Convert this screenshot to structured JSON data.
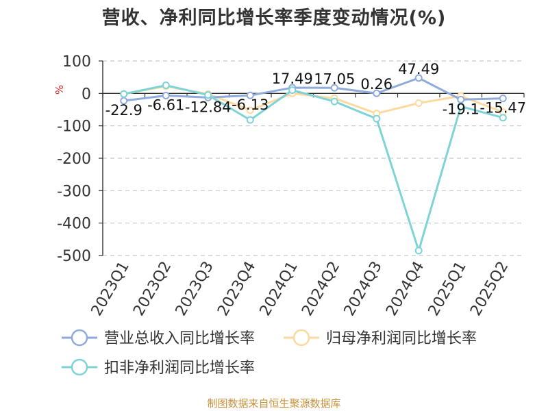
{
  "chart_data": {
    "type": "line",
    "title": "营收、净利同比增长率季度变动情况(%)",
    "ylabel": "%",
    "xlabel": "",
    "ylim": [
      -500,
      100
    ],
    "yticks": [
      100,
      0,
      -100,
      -200,
      -300,
      -400,
      -500
    ],
    "grid": true,
    "legend_position": "bottom",
    "categories": [
      "2023Q1",
      "2023Q2",
      "2023Q3",
      "2023Q4",
      "2024Q1",
      "2024Q2",
      "2024Q3",
      "2024Q4",
      "2025Q1",
      "2025Q2"
    ],
    "series": [
      {
        "name": "营业总收入同比增长率",
        "color": "#8faadc",
        "values": [
          -22.9,
          -6.61,
          -12.84,
          -6.13,
          17.49,
          17.05,
          0.26,
          47.49,
          -19.1,
          -15.47
        ],
        "labels": [
          "-22.9",
          "-6.61",
          "-12.84",
          "-6.13",
          "17.49",
          "17.05",
          "0.26",
          "47.49",
          "-19.1",
          "-15.47"
        ]
      },
      {
        "name": "归母净利润同比增长率",
        "color": "#fdd9a0",
        "values": [
          -2,
          22,
          -2,
          -52,
          0,
          -15,
          -62,
          -30,
          -8,
          -58
        ]
      },
      {
        "name": "扣非净利润同比增长率",
        "color": "#7ed3d6",
        "values": [
          -2,
          25,
          -5,
          -82,
          10,
          -25,
          -78,
          -485,
          -40,
          -75
        ]
      }
    ]
  },
  "footer": {
    "source": "制图数据来自恒生聚源数据库"
  }
}
